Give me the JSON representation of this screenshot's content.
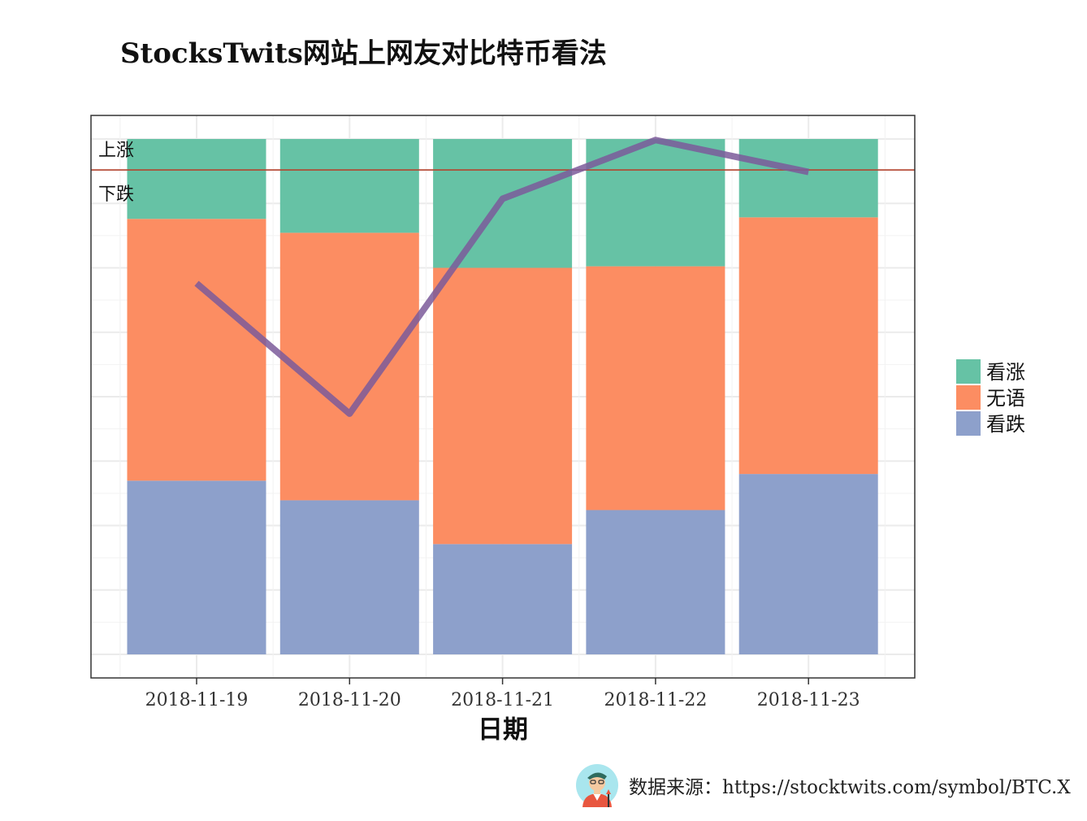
{
  "title": "StocksTwits网站上网友对比特币看法",
  "source_text": "数据来源：https://stocktwits.com/symbol/BTC.X",
  "chart_data": {
    "type": "bar",
    "stacked": "percent",
    "title": "StocksTwits网站上网友对比特币看法",
    "xlabel": "日期",
    "ylabel": "",
    "categories": [
      "2018-11-19",
      "2018-11-20",
      "2018-11-21",
      "2018-11-22",
      "2018-11-23"
    ],
    "series": [
      {
        "name": "看涨",
        "color": "#66C2A5",
        "values": [
          0.155,
          0.182,
          0.25,
          0.247,
          0.152
        ]
      },
      {
        "name": "无语",
        "color": "#FC8D62",
        "values": [
          0.508,
          0.519,
          0.536,
          0.473,
          0.498
        ]
      },
      {
        "name": "看跌",
        "color": "#8DA0CB",
        "values": [
          0.337,
          0.299,
          0.214,
          0.28,
          0.35
        ]
      }
    ],
    "line": {
      "color": "#7B5A9A",
      "values": [
        0.72,
        0.467,
        0.884,
        0.998,
        0.936
      ]
    },
    "reference_line": {
      "value": 0.94,
      "color": "#B4442E",
      "label_above": "上涨",
      "label_below": "下跌"
    },
    "legend_position": "right",
    "grid": true
  }
}
